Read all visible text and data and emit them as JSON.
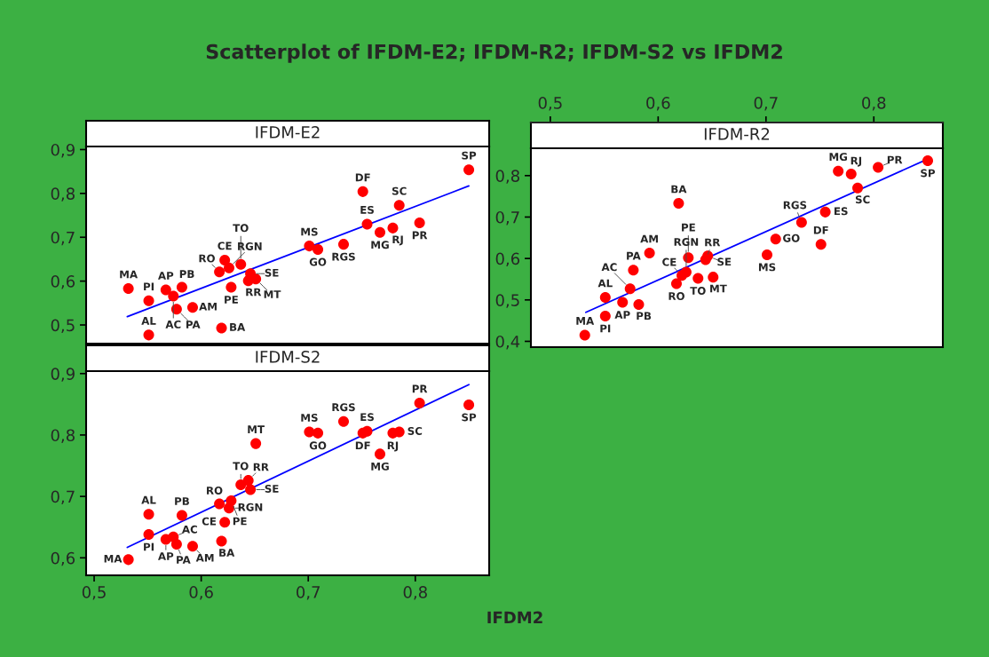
{
  "chart_data": [
    {
      "type": "scatter",
      "title": "Scatterplot of IFDM-E2; IFDM-R2; IFDM-S2 vs IFDM2",
      "subtitle": "IFDM-E2",
      "tick_labels": "y",
      "xlim": [
        0.4925,
        0.869
      ],
      "ylim": [
        0.4575,
        0.907
      ],
      "yticks": [
        {
          "value": 0.5,
          "label": "0,5"
        },
        {
          "value": 0.6,
          "label": "0,6"
        },
        {
          "value": 0.7,
          "label": "0,7"
        },
        {
          "value": 0.8,
          "label": "0,8"
        },
        {
          "value": 0.9,
          "label": "0,9"
        }
      ],
      "x": [
        0.532,
        0.551,
        0.551,
        0.567,
        0.574,
        0.577,
        0.582,
        0.592,
        0.619,
        0.617,
        0.622,
        0.626,
        0.628,
        0.637,
        0.644,
        0.646,
        0.651,
        0.701,
        0.709,
        0.733,
        0.751,
        0.755,
        0.767,
        0.779,
        0.785,
        0.804,
        0.85
      ],
      "series": [
        {
          "marker": "circle",
          "color": "#ff0000",
          "values": [
            0.583,
            0.555,
            0.477,
            0.58,
            0.566,
            0.536,
            0.586,
            0.54,
            0.493,
            0.621,
            0.648,
            0.63,
            0.586,
            0.638,
            0.601,
            0.617,
            0.605,
            0.68,
            0.672,
            0.684,
            0.804,
            0.73,
            0.711,
            0.721,
            0.773,
            0.733,
            0.854
          ]
        },
        {
          "type": "line",
          "color": "#0000ff",
          "x": [
            0.531,
            0.85
          ],
          "values": [
            0.519,
            0.817
          ]
        }
      ],
      "annotations": [
        {
          "text": "MA",
          "x": 0.532,
          "y": 0.583
        },
        {
          "text": "PI",
          "x": 0.551,
          "y": 0.555
        },
        {
          "text": "AL",
          "x": 0.551,
          "y": 0.477
        },
        {
          "text": "AP",
          "x": 0.567,
          "y": 0.58
        },
        {
          "text": "AC",
          "x": 0.574,
          "y": 0.566
        },
        {
          "text": "PA",
          "x": 0.577,
          "y": 0.536
        },
        {
          "text": "PB",
          "x": 0.582,
          "y": 0.586
        },
        {
          "text": "AM",
          "x": 0.592,
          "y": 0.54
        },
        {
          "text": "BA",
          "x": 0.619,
          "y": 0.493
        },
        {
          "text": "RO",
          "x": 0.617,
          "y": 0.621
        },
        {
          "text": "CE",
          "x": 0.622,
          "y": 0.648
        },
        {
          "text": "RGN",
          "x": 0.626,
          "y": 0.63
        },
        {
          "text": "PE",
          "x": 0.628,
          "y": 0.586
        },
        {
          "text": "TO",
          "x": 0.637,
          "y": 0.638
        },
        {
          "text": "RR",
          "x": 0.644,
          "y": 0.601
        },
        {
          "text": "SE",
          "x": 0.646,
          "y": 0.617
        },
        {
          "text": "MT",
          "x": 0.651,
          "y": 0.605
        },
        {
          "text": "MS",
          "x": 0.701,
          "y": 0.68
        },
        {
          "text": "GO",
          "x": 0.709,
          "y": 0.672
        },
        {
          "text": "RGS",
          "x": 0.733,
          "y": 0.684
        },
        {
          "text": "DF",
          "x": 0.751,
          "y": 0.804
        },
        {
          "text": "ES",
          "x": 0.755,
          "y": 0.73
        },
        {
          "text": "MG",
          "x": 0.767,
          "y": 0.711
        },
        {
          "text": "RJ",
          "x": 0.779,
          "y": 0.721
        },
        {
          "text": "SC",
          "x": 0.785,
          "y": 0.773
        },
        {
          "text": "PR",
          "x": 0.804,
          "y": 0.733
        },
        {
          "text": "SP",
          "x": 0.85,
          "y": 0.854
        }
      ]
    },
    {
      "type": "scatter",
      "subtitle": "IFDM-R2",
      "xlim": [
        0.482,
        0.864
      ],
      "ylim": [
        0.386,
        0.866
      ],
      "xticks": [
        {
          "value": 0.5,
          "label": "0,5"
        },
        {
          "value": 0.6,
          "label": "0,6"
        },
        {
          "value": 0.7,
          "label": "0,7"
        },
        {
          "value": 0.8,
          "label": "0,8"
        }
      ],
      "yticks": [
        {
          "value": 0.4,
          "label": "0,4"
        },
        {
          "value": 0.5,
          "label": "0,5"
        },
        {
          "value": 0.6,
          "label": "0,6"
        },
        {
          "value": 0.7,
          "label": "0,7"
        },
        {
          "value": 0.8,
          "label": "0,8"
        }
      ],
      "x": [
        0.532,
        0.551,
        0.551,
        0.567,
        0.574,
        0.577,
        0.582,
        0.592,
        0.619,
        0.617,
        0.622,
        0.626,
        0.628,
        0.637,
        0.644,
        0.646,
        0.651,
        0.701,
        0.709,
        0.733,
        0.751,
        0.755,
        0.767,
        0.779,
        0.785,
        0.804,
        0.85
      ],
      "series": [
        {
          "marker": "circle",
          "color": "#ff0000",
          "values": [
            0.415,
            0.461,
            0.506,
            0.494,
            0.527,
            0.572,
            0.489,
            0.613,
            0.733,
            0.539,
            0.559,
            0.567,
            0.602,
            0.552,
            0.597,
            0.606,
            0.555,
            0.609,
            0.647,
            0.687,
            0.634,
            0.712,
            0.811,
            0.804,
            0.77,
            0.82,
            0.836
          ]
        },
        {
          "type": "line",
          "color": "#0000ff",
          "x": [
            0.533,
            0.85
          ],
          "values": [
            0.47,
            0.84
          ]
        }
      ],
      "annotations": [
        {
          "text": "MA",
          "x": 0.532,
          "y": 0.415
        },
        {
          "text": "PI",
          "x": 0.551,
          "y": 0.461
        },
        {
          "text": "AL",
          "x": 0.551,
          "y": 0.506
        },
        {
          "text": "AP",
          "x": 0.567,
          "y": 0.494
        },
        {
          "text": "AC",
          "x": 0.574,
          "y": 0.527
        },
        {
          "text": "PA",
          "x": 0.577,
          "y": 0.572
        },
        {
          "text": "PB",
          "x": 0.582,
          "y": 0.489
        },
        {
          "text": "AM",
          "x": 0.592,
          "y": 0.613
        },
        {
          "text": "BA",
          "x": 0.619,
          "y": 0.733
        },
        {
          "text": "RO",
          "x": 0.617,
          "y": 0.539
        },
        {
          "text": "CE",
          "x": 0.622,
          "y": 0.559
        },
        {
          "text": "RGN",
          "x": 0.626,
          "y": 0.567
        },
        {
          "text": "PE",
          "x": 0.628,
          "y": 0.602
        },
        {
          "text": "TO",
          "x": 0.637,
          "y": 0.552
        },
        {
          "text": "RR",
          "x": 0.644,
          "y": 0.597
        },
        {
          "text": "SE",
          "x": 0.646,
          "y": 0.606
        },
        {
          "text": "MT",
          "x": 0.651,
          "y": 0.555
        },
        {
          "text": "MS",
          "x": 0.701,
          "y": 0.609
        },
        {
          "text": "GO",
          "x": 0.709,
          "y": 0.647
        },
        {
          "text": "RGS",
          "x": 0.733,
          "y": 0.687
        },
        {
          "text": "DF",
          "x": 0.751,
          "y": 0.634
        },
        {
          "text": "ES",
          "x": 0.755,
          "y": 0.712
        },
        {
          "text": "MG",
          "x": 0.767,
          "y": 0.811
        },
        {
          "text": "RJ",
          "x": 0.779,
          "y": 0.804
        },
        {
          "text": "SC",
          "x": 0.785,
          "y": 0.77
        },
        {
          "text": "PR",
          "x": 0.804,
          "y": 0.82
        },
        {
          "text": "SP",
          "x": 0.85,
          "y": 0.836
        }
      ]
    },
    {
      "type": "scatter",
      "subtitle": "IFDM-S2",
      "xlabel": "IFDM2",
      "xlim": [
        0.4925,
        0.869
      ],
      "ylim": [
        0.5715,
        0.904
      ],
      "xticks": [
        {
          "value": 0.5,
          "label": "0,5"
        },
        {
          "value": 0.6,
          "label": "0,6"
        },
        {
          "value": 0.7,
          "label": "0,7"
        },
        {
          "value": 0.8,
          "label": "0,8"
        }
      ],
      "yticks": [
        {
          "value": 0.6,
          "label": "0,6"
        },
        {
          "value": 0.7,
          "label": "0,7"
        },
        {
          "value": 0.8,
          "label": "0,8"
        },
        {
          "value": 0.9,
          "label": "0,9"
        }
      ],
      "x": [
        0.532,
        0.551,
        0.551,
        0.567,
        0.574,
        0.577,
        0.582,
        0.592,
        0.619,
        0.617,
        0.622,
        0.626,
        0.628,
        0.637,
        0.644,
        0.646,
        0.651,
        0.701,
        0.709,
        0.733,
        0.751,
        0.755,
        0.767,
        0.779,
        0.785,
        0.804,
        0.85
      ],
      "series": [
        {
          "marker": "circle",
          "color": "#ff0000",
          "values": [
            0.597,
            0.638,
            0.671,
            0.63,
            0.634,
            0.622,
            0.669,
            0.619,
            0.627,
            0.688,
            0.658,
            0.681,
            0.693,
            0.719,
            0.726,
            0.711,
            0.786,
            0.805,
            0.803,
            0.822,
            0.803,
            0.806,
            0.769,
            0.803,
            0.805,
            0.852,
            0.849
          ]
        },
        {
          "type": "line",
          "color": "#0000ff",
          "x": [
            0.531,
            0.85
          ],
          "values": [
            0.617,
            0.882
          ]
        }
      ],
      "annotations": [
        {
          "text": "MA",
          "x": 0.532,
          "y": 0.597
        },
        {
          "text": "PI",
          "x": 0.551,
          "y": 0.638
        },
        {
          "text": "AL",
          "x": 0.551,
          "y": 0.671
        },
        {
          "text": "AP",
          "x": 0.567,
          "y": 0.63
        },
        {
          "text": "AC",
          "x": 0.574,
          "y": 0.634
        },
        {
          "text": "PA",
          "x": 0.577,
          "y": 0.622
        },
        {
          "text": "PB",
          "x": 0.582,
          "y": 0.669
        },
        {
          "text": "AM",
          "x": 0.592,
          "y": 0.619
        },
        {
          "text": "BA",
          "x": 0.619,
          "y": 0.627
        },
        {
          "text": "RO",
          "x": 0.617,
          "y": 0.688
        },
        {
          "text": "CE",
          "x": 0.622,
          "y": 0.658
        },
        {
          "text": "RGN",
          "x": 0.626,
          "y": 0.681
        },
        {
          "text": "PE",
          "x": 0.628,
          "y": 0.693
        },
        {
          "text": "TO",
          "x": 0.637,
          "y": 0.719
        },
        {
          "text": "RR",
          "x": 0.644,
          "y": 0.726
        },
        {
          "text": "SE",
          "x": 0.646,
          "y": 0.711
        },
        {
          "text": "MT",
          "x": 0.651,
          "y": 0.786
        },
        {
          "text": "MS",
          "x": 0.701,
          "y": 0.805
        },
        {
          "text": "GO",
          "x": 0.709,
          "y": 0.803
        },
        {
          "text": "RGS",
          "x": 0.733,
          "y": 0.822
        },
        {
          "text": "DF",
          "x": 0.751,
          "y": 0.803
        },
        {
          "text": "ES",
          "x": 0.755,
          "y": 0.806
        },
        {
          "text": "MG",
          "x": 0.767,
          "y": 0.769
        },
        {
          "text": "RJ",
          "x": 0.779,
          "y": 0.803
        },
        {
          "text": "SC",
          "x": 0.785,
          "y": 0.805
        },
        {
          "text": "PR",
          "x": 0.804,
          "y": 0.852
        },
        {
          "text": "SP",
          "x": 0.85,
          "y": 0.849
        }
      ]
    }
  ]
}
